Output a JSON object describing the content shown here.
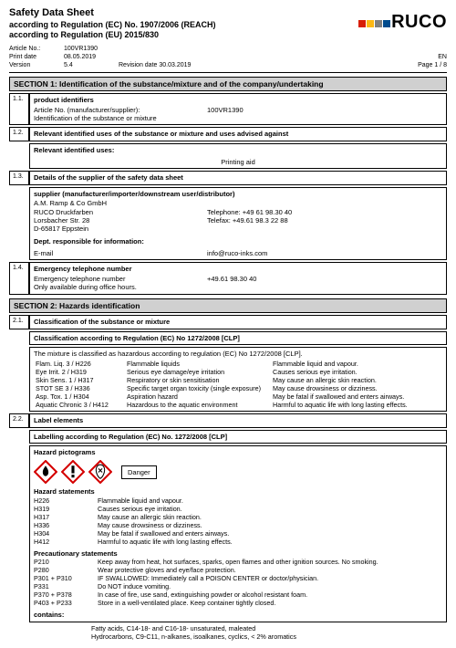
{
  "header": {
    "title": "Safety Data Sheet",
    "line1": "according to Regulation (EC) No. 1907/2006 (REACH)",
    "line2": "according to Regulation (EU) 2015/830",
    "logo_text": "RUCO",
    "logo_colors": [
      "#d81e05",
      "#fdb813",
      "#7f7f7f",
      "#004b8d"
    ]
  },
  "meta": {
    "articleLabel": "Article No.:",
    "articleVal": "100VR1390",
    "printLabel": "Print date",
    "printVal": "08.05.2019",
    "versionLabel": "Version",
    "versionVal": "5.4",
    "revLabel": "Revision date 30.03.2019",
    "langLabel": "EN",
    "pageLabel": "Page 1 / 8"
  },
  "s1": {
    "title": "SECTION 1: Identification of the substance/mixture and of the company/undertaking",
    "r11": {
      "num": "1.1.",
      "title": "product identifiers",
      "aLabel": "Article No. (manufacturer/supplier):",
      "aVal": "100VR1390",
      "bLabel": "Identification of the substance or mixture"
    },
    "r12": {
      "num": "1.2.",
      "title": "Relevant identified uses of the substance or mixture and uses advised against",
      "sub": "Relevant identified uses:",
      "use": "Printing aid"
    },
    "r13": {
      "num": "1.3.",
      "title": "Details of the supplier of the safety data sheet",
      "supTitle": "supplier (manufacturer/importer/downstream user/distributor)",
      "l1": "A.M. Ramp & Co GmbH",
      "l2": "RUCO Druckfarben",
      "l3": "Lorsbacher Str. 28",
      "l4": "D-65817 Eppstein",
      "tel": "Telephone: +49 61 98.30 40",
      "fax": "Telefax: +49.61 98.3 22 88",
      "deptTitle": "Dept. responsible for information:",
      "emailLabel": "E-mail",
      "emailVal": "info@ruco-inks.com"
    },
    "r14": {
      "num": "1.4.",
      "title": "Emergency telephone number",
      "l1": "Emergency telephone number",
      "tel": "+49.61 98.30 40",
      "l2": "Only available during office hours."
    }
  },
  "s2": {
    "title": "SECTION 2: Hazards identification",
    "r21": {
      "num": "2.1.",
      "title": "Classification of the substance or mixture"
    },
    "clpTitle": "Classification according to Regulation (EC) No 1272/2008 [CLP]",
    "clpNote": "The mixture is classified as hazardous according to regulation (EC) No 1272/2008 [CLP].",
    "rows": [
      [
        "Flam. Liq. 3 / H226",
        "Flammable liquids",
        "Flammable liquid and vapour."
      ],
      [
        "Eye Irrit. 2 / H319",
        "Serious eye damage/eye irritation",
        "Causes serious eye irritation."
      ],
      [
        "Skin Sens. 1 / H317",
        "Respiratory or skin sensitisation",
        "May cause an allergic skin reaction."
      ],
      [
        "STOT SE 3 / H336",
        "Specific target organ toxicity (single exposure)",
        "May cause drowsiness or dizziness."
      ],
      [
        "Asp. Tox. 1 / H304",
        "Aspiration hazard",
        "May be fatal if swallowed and enters airways."
      ],
      [
        "Aquatic Chronic 3 / H412",
        "Hazardous to the aquatic environment",
        "Harmful to aquatic life with long lasting effects."
      ]
    ],
    "r22": {
      "num": "2.2.",
      "title": "Label elements"
    },
    "labTitle": "Labelling according to Regulation (EC) No. 1272/2008 [CLP]",
    "hpTitle": "Hazard pictograms",
    "danger": "Danger",
    "hsTitle": "Hazard statements",
    "hs": [
      [
        "H226",
        "Flammable liquid and vapour."
      ],
      [
        "H319",
        "Causes serious eye irritation."
      ],
      [
        "H317",
        "May cause an allergic skin reaction."
      ],
      [
        "H336",
        "May cause drowsiness or dizziness."
      ],
      [
        "H304",
        "May be fatal if swallowed and enters airways."
      ],
      [
        "H412",
        "Harmful to aquatic life with long lasting effects."
      ]
    ],
    "psTitle": "Precautionary statements",
    "ps": [
      [
        "P210",
        "Keep away from heat, hot surfaces, sparks, open flames and other ignition sources. No smoking."
      ],
      [
        "P280",
        "Wear protective gloves and eye/face protection."
      ],
      [
        "P301 + P310",
        "IF SWALLOWED: Immediately call a POISON CENTER or doctor/physician."
      ],
      [
        "P331",
        "Do NOT induce vomiting."
      ],
      [
        "P370 + P378",
        "In case of fire, use sand, extinguishing powder or alcohol resistant foam."
      ],
      [
        "P403 + P233",
        "Store in a well-ventilated place. Keep container tightly closed."
      ]
    ],
    "containsTitle": "contains:",
    "contains1": "Fatty acids, C14-18- and C16-18- unsaturated, maleated",
    "contains2": "Hydrocarbons, C9-C11, n-alkanes, isoalkanes, cyclics, < 2% aromatics"
  }
}
